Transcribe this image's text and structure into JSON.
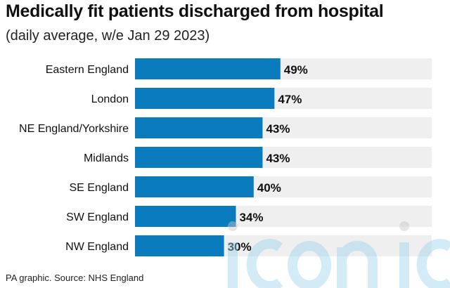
{
  "title": "Medically fit patients discharged from hospital",
  "subtitle": "(daily average, w/e Jan 29 2023)",
  "source": "PA graphic. Source: NHS England",
  "watermark": "iconic",
  "colors": {
    "bar": "#0a7bbd",
    "track": "#efefef"
  },
  "chart_data": {
    "type": "bar",
    "orientation": "horizontal",
    "title": "Medically fit patients discharged from hospital",
    "subtitle": "(daily average, w/e Jan 29 2023)",
    "categories": [
      "Eastern England",
      "London",
      "NE England/Yorkshire",
      "Midlands",
      "SE England",
      "SW England",
      "NW England"
    ],
    "values": [
      49,
      47,
      43,
      43,
      40,
      34,
      30
    ],
    "labels": [
      "49%",
      "47%",
      "43%",
      "43%",
      "40%",
      "34%",
      "30%"
    ],
    "xlim": [
      0,
      100
    ],
    "grid": false,
    "legend": "none"
  }
}
